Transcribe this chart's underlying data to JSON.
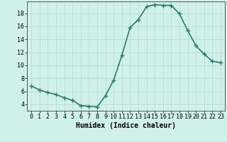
{
  "x": [
    0,
    1,
    2,
    3,
    4,
    5,
    6,
    7,
    8,
    9,
    10,
    11,
    12,
    13,
    14,
    15,
    16,
    17,
    18,
    19,
    20,
    21,
    22,
    23
  ],
  "y": [
    6.8,
    6.2,
    5.8,
    5.5,
    5.0,
    4.6,
    3.8,
    3.7,
    3.6,
    5.3,
    7.7,
    11.5,
    15.8,
    17.0,
    19.0,
    19.3,
    19.2,
    19.2,
    17.9,
    15.3,
    13.0,
    11.7,
    10.6,
    10.4
  ],
  "line_color": "#2e7d6e",
  "marker": "+",
  "marker_size": 4,
  "xlabel": "Humidex (Indice chaleur)",
  "xlim": [
    -0.5,
    23.5
  ],
  "ylim": [
    3,
    19.8
  ],
  "yticks": [
    4,
    6,
    8,
    10,
    12,
    14,
    16,
    18
  ],
  "xticks": [
    0,
    1,
    2,
    3,
    4,
    5,
    6,
    7,
    8,
    9,
    10,
    11,
    12,
    13,
    14,
    15,
    16,
    17,
    18,
    19,
    20,
    21,
    22,
    23
  ],
  "xtick_labels": [
    "0",
    "1",
    "2",
    "3",
    "4",
    "5",
    "6",
    "7",
    "8",
    "9",
    "10",
    "11",
    "12",
    "13",
    "14",
    "15",
    "16",
    "17",
    "18",
    "19",
    "20",
    "21",
    "22",
    "23"
  ],
  "background_color": "#cff0eb",
  "grid_color": "#b8ddd8",
  "line_width": 1.2,
  "tick_fontsize": 6,
  "xlabel_fontsize": 7
}
